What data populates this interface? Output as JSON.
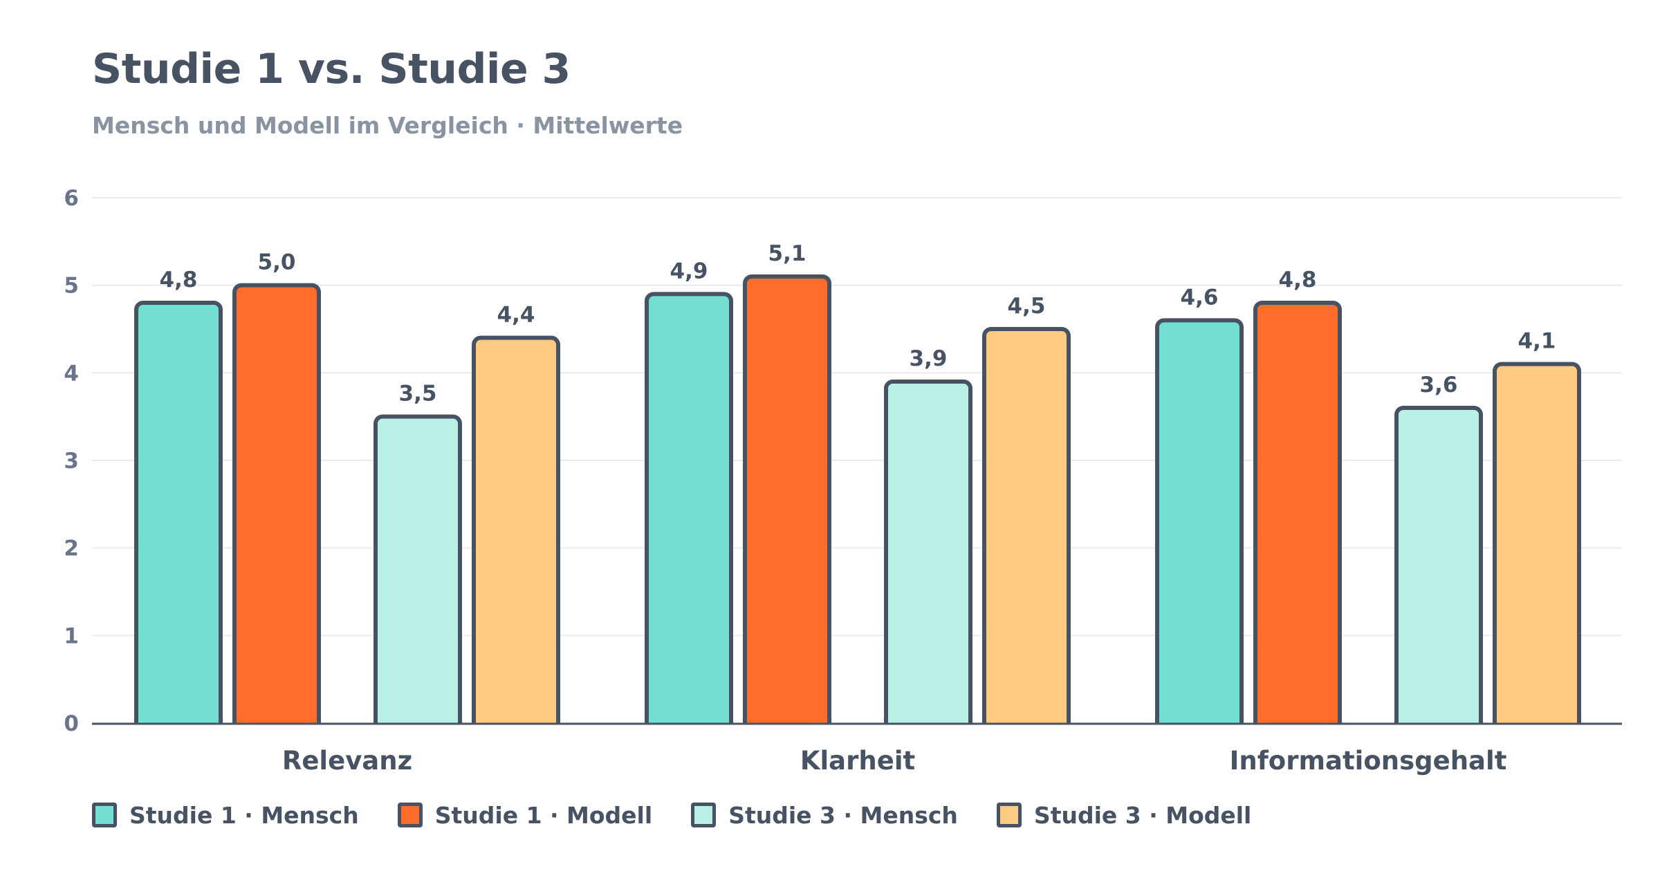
{
  "chart_data": {
    "type": "bar",
    "title": "Studie 1 vs. Studie 3",
    "subtitle": "Mensch und Modell im Vergleich · Mittelwerte",
    "categories": [
      "Relevanz",
      "Klarheit",
      "Informationsgehalt"
    ],
    "series": [
      {
        "name": "Studie 1 · Mensch",
        "values": [
          4.8,
          4.9,
          4.6
        ],
        "labels": [
          "4,8",
          "4,9",
          "4,6"
        ],
        "color": "#72dfd0"
      },
      {
        "name": "Studie 1 · Modell",
        "values": [
          5.0,
          5.1,
          4.8
        ],
        "labels": [
          "5,0",
          "5,1",
          "4,8"
        ],
        "color": "#ff6d2d"
      },
      {
        "name": "Studie 3 · Mensch",
        "values": [
          3.5,
          3.9,
          3.6
        ],
        "labels": [
          "3,5",
          "3,9",
          "3,6"
        ],
        "color": "#b8f0e5"
      },
      {
        "name": "Studie 3 · Modell",
        "values": [
          4.4,
          4.5,
          4.1
        ],
        "labels": [
          "4,4",
          "4,5",
          "4,1"
        ],
        "color": "#ffcb82"
      }
    ],
    "ylim": [
      0,
      6
    ],
    "yticks": [
      0,
      1,
      2,
      3,
      4,
      5,
      6
    ],
    "xlabel": "",
    "ylabel": "",
    "grid": true,
    "legend_position": "bottom-left",
    "stroke_color": "#475263",
    "grid_color": "#e8eaed",
    "axis_color": "#475263"
  }
}
